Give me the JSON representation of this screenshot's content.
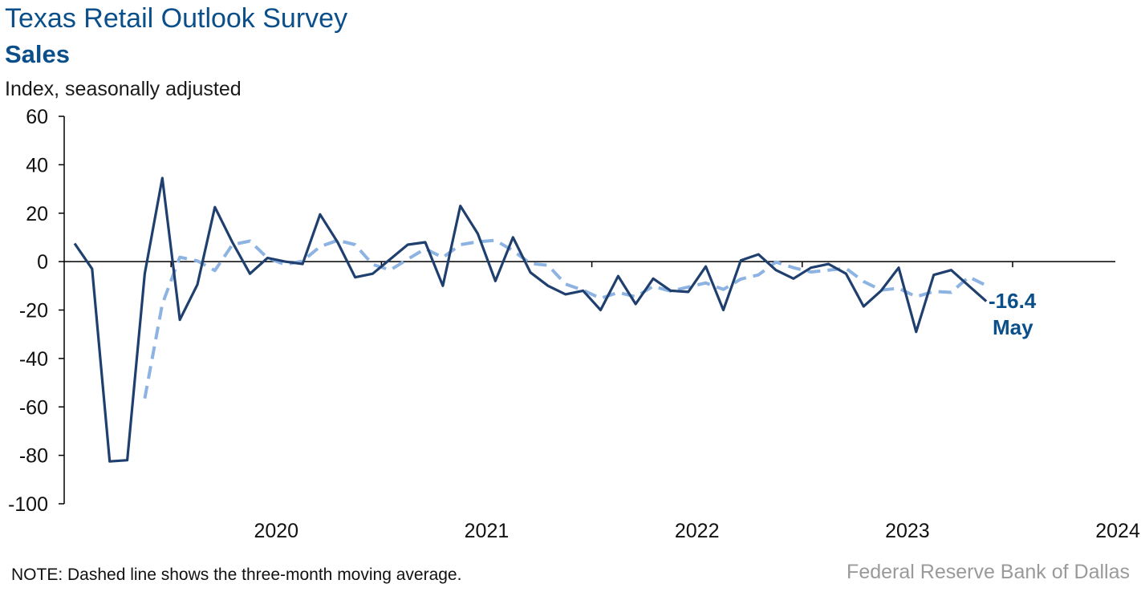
{
  "chart_data": {
    "type": "line",
    "title": "Texas Retail Outlook Survey",
    "subtitle": "Sales",
    "ylabel": "Index, seasonally adjusted",
    "ylim": [
      -100,
      60
    ],
    "yticks": [
      60,
      40,
      20,
      0,
      -20,
      -40,
      -60,
      -80,
      -100
    ],
    "xtick_labels": [
      "2020",
      "2021",
      "2022",
      "2023",
      "2024"
    ],
    "start_month": "2019-07",
    "series": [
      {
        "role": "monthly",
        "color": "#1f3f6e",
        "style": "solid",
        "values": [
          7.5,
          -3,
          -82.5,
          -82,
          -5,
          34.5,
          -24,
          -9.5,
          22.5,
          8,
          -5,
          1.5,
          0,
          -1,
          19.5,
          8,
          -6.5,
          -5,
          1,
          7,
          8,
          -10,
          23,
          11.5,
          -8,
          10,
          -4.5,
          -10,
          -13.5,
          -12,
          -20,
          -6,
          -17.5,
          -7,
          -12,
          -12.5,
          -2,
          -20,
          0.5,
          3,
          -3.5,
          -7,
          -2.5,
          -1,
          -5,
          -18.5,
          -12,
          -2.5,
          -29,
          -5.5,
          -3.5,
          -10,
          -16.4
        ]
      },
      {
        "role": "three-month moving average",
        "color": "#8db3e2",
        "style": "dashed",
        "values": [
          null,
          null,
          null,
          null,
          -56.5,
          -17.5,
          1.8,
          0.3,
          -3.7,
          7,
          8.5,
          1.5,
          -1.2,
          0.2,
          6.2,
          8.8,
          7,
          -1.2,
          -3.5,
          1,
          5.3,
          1.7,
          7,
          8.2,
          8.8,
          4.5,
          -0.8,
          -1.5,
          -9.3,
          -11.8,
          -15.2,
          -12.7,
          -14.5,
          -10.2,
          -12.2,
          -10.5,
          -8.8,
          -11.5,
          -7.2,
          -5.5,
          -0.2,
          -2.5,
          -4.3,
          -3.5,
          -2.8,
          -8.2,
          -11.8,
          -11,
          -14.5,
          -12.3,
          -12.7,
          -6.3,
          -9.9
        ]
      }
    ],
    "annotation": {
      "value": "-16.4",
      "month": "May"
    }
  },
  "note": "NOTE: Dashed line shows the three-month moving average.",
  "source": "Federal Reserve Bank of Dallas"
}
